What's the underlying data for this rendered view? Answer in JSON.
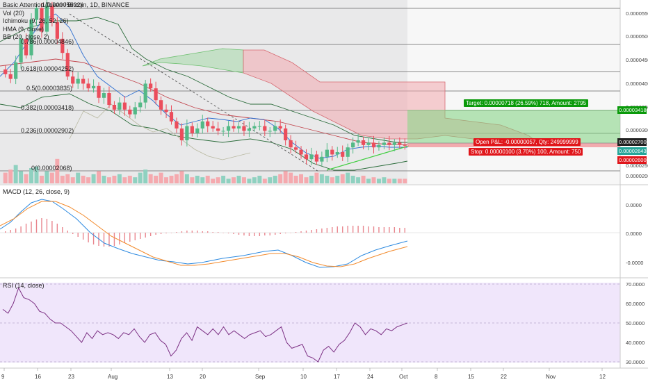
{
  "header": {
    "title": "Basic Attention Token / Bitcoin, 1D, BINANCE",
    "indicators": [
      "Vol (20)",
      "Ichimoku (9, 26, 52, 26)",
      "HMA (9, close)",
      "BB (20, close, 2)"
    ]
  },
  "fib_levels": [
    {
      "label": "0.786(0.00004846)",
      "value": 4.846e-05
    },
    {
      "label": "0.618(0.00004252)",
      "value": 4.252e-05
    },
    {
      "label": "0.5(0.00003835)",
      "value": 3.835e-05
    },
    {
      "label": "0.382(0.00003418)",
      "value": 3.418e-05
    },
    {
      "label": "0.236(0.00002902)",
      "value": 2.902e-05
    },
    {
      "label": "0(0.00002068)",
      "value": 2.068e-05
    }
  ],
  "fib_top_label": "1(0.00005602)",
  "price_axis": {
    "ticks": [
      "0.00005500",
      "0.00005000",
      "0.00004500",
      "0.00004000",
      "0.00003500",
      "0.00003000",
      "0.00002500",
      "0.00002000"
    ],
    "tag_target": "0.00003418",
    "tag_current": "0.00002700",
    "tag_last": "0.00002643",
    "tag_stop": "0.00002600"
  },
  "trade_labels": {
    "target": "Target: 0.00000718 (26.59%) 718, Amount: 2795",
    "open_pl": "Open P&L: -0.00000057, Qty: 249999999",
    "stop": "Stop: 0.00000100 (3.70%) 100, Amount: 750"
  },
  "macd": {
    "title": "MACD (12, 26, close, 9)",
    "ticks": [
      "0.0000",
      "0.0000",
      "-0.0000"
    ]
  },
  "rsi": {
    "title": "RSI (14, close)",
    "ticks": [
      "70.0000",
      "60.0000",
      "50.0000",
      "40.0000",
      "30.0000"
    ]
  },
  "x_axis": [
    "9",
    "16",
    "23",
    "Aug",
    "13",
    "20",
    "Sep",
    "10",
    "17",
    "24",
    "Oct",
    "8",
    "15",
    "22",
    "Nov",
    "12"
  ],
  "colors": {
    "bull": "#53b987",
    "bear": "#eb4d5c",
    "rsi_bg": "#f0e6fb",
    "target_green": "#0a9a0a",
    "stop_red": "#e0161b"
  },
  "chart_data": {
    "type": "candlestick",
    "close": [
      4.15,
      4.05,
      4.4,
      4.9,
      4.55,
      5.3,
      5.55,
      5.05,
      5.6,
      5.25,
      4.9,
      4.6,
      4.1,
      3.95,
      4.05,
      3.95,
      3.85,
      3.9,
      3.65,
      3.75,
      3.5,
      3.4,
      3.55,
      3.4,
      3.3,
      3.45,
      3.55,
      3.95,
      3.85,
      3.6,
      3.4,
      3.35,
      3.15,
      3.0,
      2.75,
      3.05,
      2.9,
      3.0,
      3.15,
      3.05,
      3.0,
      2.95,
      2.95,
      3.05,
      3.0,
      3.05,
      2.95,
      3.0,
      3.05,
      3.05,
      2.95,
      2.95,
      3.05,
      3.0,
      2.75,
      2.6,
      2.55,
      2.45,
      2.35,
      2.45,
      2.3,
      2.4,
      2.55,
      2.45,
      2.5,
      2.4,
      2.6,
      2.7,
      2.75,
      2.65,
      2.7,
      2.6,
      2.65,
      2.7,
      2.65,
      2.7,
      2.65,
      2.643
    ],
    "volume": [
      0.7,
      0.9,
      1.2,
      0.8,
      0.6,
      1.0,
      1.1,
      0.5,
      0.8,
      0.7,
      1.6,
      0.5,
      0.6,
      0.4,
      0.7,
      0.5,
      0.4,
      0.6,
      0.8,
      0.5,
      0.4,
      0.5,
      0.6,
      0.4,
      0.5,
      0.4,
      0.7,
      0.9,
      0.6,
      0.5,
      0.7,
      0.4,
      0.5,
      0.6,
      0.8,
      0.6,
      0.4,
      0.5,
      0.4,
      0.5,
      0.3,
      0.4,
      0.5,
      0.3,
      0.4,
      0.5,
      0.4,
      0.3,
      0.4,
      0.5,
      0.3,
      0.4,
      0.5,
      0.6,
      0.8,
      0.7,
      0.5,
      0.6,
      0.4,
      0.5,
      0.7,
      0.6,
      0.5,
      0.4,
      0.5,
      0.6,
      0.7,
      0.5,
      0.4,
      0.5,
      0.3,
      0.4,
      0.3,
      0.4,
      0.3,
      0.3,
      0.3,
      0.3
    ],
    "rsi": [
      57,
      55,
      60,
      68,
      63,
      62,
      60,
      56,
      55,
      52,
      50,
      50,
      48,
      46,
      43,
      40,
      45,
      42,
      46,
      44,
      45,
      44,
      42,
      45,
      44,
      47,
      43,
      40,
      44,
      45,
      41,
      39,
      33,
      36,
      42,
      45,
      41,
      48,
      46,
      44,
      47,
      44,
      48,
      44,
      46,
      44,
      42,
      44,
      45,
      46,
      43,
      44,
      46,
      48,
      40,
      37,
      38,
      39,
      33,
      32,
      30,
      36,
      38,
      35,
      39,
      41,
      45,
      50,
      48,
      44,
      47,
      46,
      44,
      47,
      46,
      48,
      49,
      50
    ]
  }
}
